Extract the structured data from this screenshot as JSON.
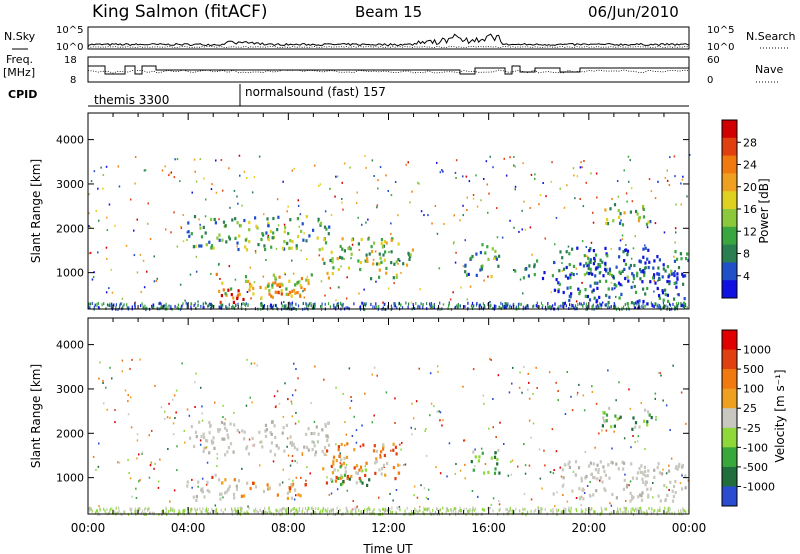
{
  "header": {
    "station": "King Salmon (fitACF)",
    "beam": "Beam 15",
    "date": "06/Jun/2010"
  },
  "left_labels": {
    "nsky": "N.Sky",
    "freq": "Freq.",
    "freq_unit": "[MHz]",
    "cpid": "CPID"
  },
  "right_labels": {
    "nsearch": "N.Search",
    "nave": "Nave"
  },
  "noise_axis": {
    "left_ticks": [
      "10^5",
      "10^0"
    ],
    "right_ticks": [
      "10^5",
      "10^0"
    ]
  },
  "freq_axis": {
    "left_ticks": [
      "18",
      "8"
    ],
    "right_ticks": [
      "60",
      "0"
    ]
  },
  "cpid_programs": [
    {
      "label": "themis 3300",
      "start_hour": 0
    },
    {
      "label": "normalsound (fast) 157",
      "start_hour": 6.0
    }
  ],
  "chart_data": [
    {
      "type": "heatmap",
      "panel": "power",
      "ylabel": "Slant Range [km]",
      "xlabel": "",
      "xlim_hours": [
        0,
        24
      ],
      "ylim": [
        180,
        4600
      ],
      "y_ticks": [
        "1000",
        "2000",
        "3000",
        "4000"
      ],
      "colorbar": {
        "label": "Power [dB]",
        "ticks": [
          "4",
          "8",
          "12",
          "16",
          "20",
          "24",
          "28"
        ],
        "colors": [
          "#1010e0",
          "#2050c8",
          "#2a7f50",
          "#3aa640",
          "#8cc83c",
          "#e0d020",
          "#f0a020",
          "#f07a10",
          "#e04010",
          "#d00000"
        ]
      },
      "echo_regions": [
        {
          "t0": 3.9,
          "t1": 9.6,
          "r0": 1550,
          "r1": 2300,
          "level": 0.35
        },
        {
          "t0": 5.0,
          "t1": 9.0,
          "r0": 500,
          "r1": 1000,
          "level": 0.55
        },
        {
          "t0": 5.0,
          "t1": 6.6,
          "r0": 350,
          "r1": 650,
          "level": 0.9
        },
        {
          "t0": 6.3,
          "t1": 8.8,
          "r0": 450,
          "r1": 780,
          "level": 0.7
        },
        {
          "t0": 9.3,
          "t1": 12.4,
          "r0": 900,
          "r1": 1800,
          "level": 0.45
        },
        {
          "t0": 12.0,
          "t1": 13.0,
          "r0": 1200,
          "r1": 1600,
          "level": 0.45
        },
        {
          "t0": 15.0,
          "t1": 16.4,
          "r0": 900,
          "r1": 1700,
          "level": 0.3
        },
        {
          "t0": 17.0,
          "t1": 24.0,
          "r0": 900,
          "r1": 1300,
          "level": 0.2
        },
        {
          "t0": 18.5,
          "t1": 24.0,
          "r0": 300,
          "r1": 1600,
          "level": 0.15
        },
        {
          "t0": 20.5,
          "t1": 22.5,
          "r0": 2100,
          "r1": 2600,
          "level": 0.4
        }
      ]
    },
    {
      "type": "heatmap",
      "panel": "velocity",
      "ylabel": "Slant Range [km]",
      "xlabel": "Time UT",
      "xlim_hours": [
        0,
        24
      ],
      "ylim": [
        180,
        4600
      ],
      "y_ticks": [
        "1000",
        "2000",
        "3000",
        "4000"
      ],
      "x_ticks": [
        "00:00",
        "04:00",
        "08:00",
        "12:00",
        "16:00",
        "20:00",
        "00:00"
      ],
      "colorbar": {
        "label": "Velocity [m s⁻¹]",
        "ticks": [
          "1000",
          "500",
          "100",
          "25",
          "-25",
          "-100",
          "-500",
          "-1000"
        ],
        "colors": [
          "#2a4cd0",
          "#1f6e3c",
          "#38a83c",
          "#8ed83a",
          "#c8c8c0",
          "#f0a020",
          "#f07a10",
          "#e04010",
          "#e00000"
        ]
      },
      "echo_regions": [
        {
          "t0": 3.9,
          "t1": 9.6,
          "r0": 1550,
          "r1": 2300,
          "kind": "ground"
        },
        {
          "t0": 3.9,
          "t1": 6.0,
          "r0": 500,
          "r1": 1000,
          "kind": "ground"
        },
        {
          "t0": 6.0,
          "t1": 8.8,
          "r0": 550,
          "r1": 900,
          "kind": "away"
        },
        {
          "t0": 4.8,
          "t1": 6.8,
          "r0": 900,
          "r1": 1100,
          "kind": "away"
        },
        {
          "t0": 9.3,
          "t1": 12.4,
          "r0": 900,
          "r1": 1800,
          "kind": "away"
        },
        {
          "t0": 9.6,
          "t1": 11.2,
          "r0": 850,
          "r1": 1300,
          "kind": "toward"
        },
        {
          "t0": 15.2,
          "t1": 16.4,
          "r0": 1100,
          "r1": 1700,
          "kind": "toward"
        },
        {
          "t0": 18.5,
          "t1": 24.0,
          "r0": 500,
          "r1": 1400,
          "kind": "ground"
        },
        {
          "t0": 20.5,
          "t1": 22.5,
          "r0": 2100,
          "r1": 2600,
          "kind": "toward"
        }
      ]
    }
  ]
}
